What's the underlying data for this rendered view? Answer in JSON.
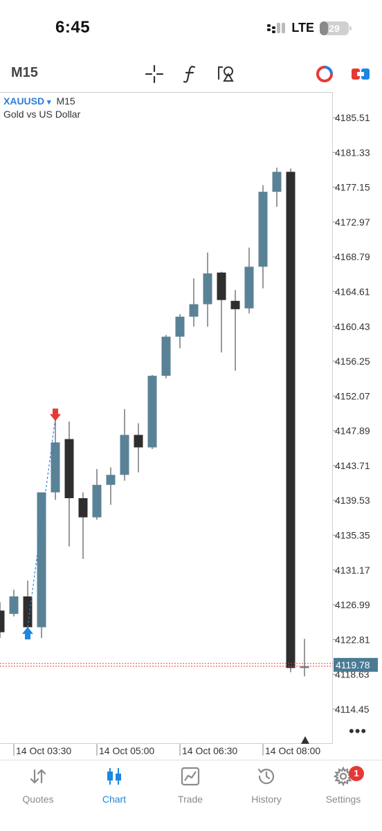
{
  "status_bar": {
    "time": "6:45",
    "network": "LTE",
    "battery": "29",
    "battery_level": 0.29
  },
  "toolbar": {
    "timeframe": "M15"
  },
  "chart_header": {
    "symbol": "XAUUSD",
    "dropdown_glyph": "▾",
    "timeframe": "M15",
    "description": "Gold vs US Dollar"
  },
  "more_label": "•••",
  "colors": {
    "bull": "#5a8296",
    "bear": "#2e2e2e",
    "wick": "#555555",
    "bid_line": "#e53935",
    "price_tag": "#4a7b94",
    "accent": "#1c86e0",
    "badge": "#e53935"
  },
  "chart_data": {
    "type": "candlestick",
    "symbol": "XAUUSD",
    "timeframe": "M15",
    "y_axis": {
      "ticks": [
        "4185.51",
        "4181.33",
        "4177.15",
        "4172.97",
        "4168.79",
        "4164.61",
        "4160.43",
        "4156.25",
        "4152.07",
        "4147.89",
        "4143.71",
        "4139.53",
        "4135.35",
        "4131.17",
        "4126.99",
        "4122.81",
        "4118.63",
        "4114.45"
      ]
    },
    "x_axis": {
      "ticks": [
        "14 Oct 03:30",
        "14 Oct 05:00",
        "14 Oct 06:30",
        "14 Oct 08:00"
      ]
    },
    "current_price": "4119.78",
    "candles": [
      {
        "open": 4126.3,
        "high": 4127.3,
        "low": 4123.0,
        "close": 4123.7
      },
      {
        "open": 4125.9,
        "high": 4128.8,
        "low": 4125.6,
        "close": 4128.0
      },
      {
        "open": 4128.0,
        "high": 4129.9,
        "low": 4124.0,
        "close": 4124.3
      },
      {
        "open": 4124.3,
        "high": 4140.3,
        "low": 4123.0,
        "close": 4140.5
      },
      {
        "open": 4140.5,
        "high": 4150.4,
        "low": 4139.6,
        "close": 4146.5
      },
      {
        "open": 4146.9,
        "high": 4149.0,
        "low": 4134.0,
        "close": 4139.8
      },
      {
        "open": 4139.8,
        "high": 4140.5,
        "low": 4132.5,
        "close": 4137.5
      },
      {
        "open": 4137.5,
        "high": 4143.3,
        "low": 4137.2,
        "close": 4141.4
      },
      {
        "open": 4141.4,
        "high": 4143.5,
        "low": 4139.0,
        "close": 4142.6
      },
      {
        "open": 4142.6,
        "high": 4150.5,
        "low": 4141.9,
        "close": 4147.4
      },
      {
        "open": 4147.4,
        "high": 4148.8,
        "low": 4142.9,
        "close": 4145.9
      },
      {
        "open": 4145.9,
        "high": 4154.6,
        "low": 4145.7,
        "close": 4154.5
      },
      {
        "open": 4154.5,
        "high": 4159.4,
        "low": 4154.2,
        "close": 4159.2
      },
      {
        "open": 4159.2,
        "high": 4161.9,
        "low": 4157.8,
        "close": 4161.6
      },
      {
        "open": 4161.6,
        "high": 4166.2,
        "low": 4160.4,
        "close": 4163.1
      },
      {
        "open": 4163.1,
        "high": 4169.3,
        "low": 4160.4,
        "close": 4166.8
      },
      {
        "open": 4166.9,
        "high": 4167.0,
        "low": 4157.3,
        "close": 4163.6
      },
      {
        "open": 4163.5,
        "high": 4164.8,
        "low": 4155.1,
        "close": 4162.5
      },
      {
        "open": 4162.6,
        "high": 4169.9,
        "low": 4162.0,
        "close": 4167.6
      },
      {
        "open": 4167.6,
        "high": 4177.4,
        "low": 4165.0,
        "close": 4176.6
      },
      {
        "open": 4176.6,
        "high": 4179.5,
        "low": 4174.8,
        "close": 4179.0
      },
      {
        "open": 4179.0,
        "high": 4179.4,
        "low": 4118.9,
        "close": 4119.4
      },
      {
        "open": 4119.4,
        "high": 4122.9,
        "low": 4118.4,
        "close": 4119.6
      }
    ]
  },
  "tabs": [
    {
      "label": "Quotes",
      "icon": "quotes-icon"
    },
    {
      "label": "Chart",
      "icon": "chart-icon"
    },
    {
      "label": "Trade",
      "icon": "trade-icon"
    },
    {
      "label": "History",
      "icon": "history-icon"
    },
    {
      "label": "Settings",
      "icon": "settings-icon",
      "badge": "1"
    }
  ]
}
